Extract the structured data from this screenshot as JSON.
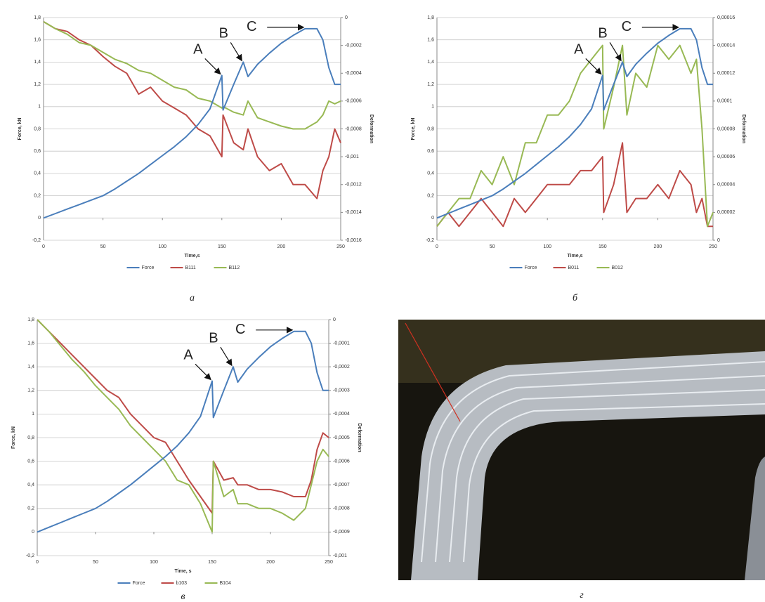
{
  "chart_data": [
    {
      "type": "line",
      "caption": "а",
      "xlabel": "Time,s",
      "ylabel": "Force, kN",
      "y2label": "Deformation",
      "xlim": [
        0,
        250
      ],
      "xticks": [
        0,
        50,
        100,
        150,
        200,
        250
      ],
      "ylim": [
        -0.2,
        1.8
      ],
      "yticks": [
        {
          "value": -0.2,
          "label": "-0,2"
        },
        0,
        {
          "value": 0.2,
          "label": "0,2"
        },
        {
          "value": 0.4,
          "label": "0,4"
        },
        {
          "value": 0.6,
          "label": "0,6"
        },
        {
          "value": 0.8,
          "label": "0,8"
        },
        1,
        {
          "value": 1.2,
          "label": "1,2"
        },
        {
          "value": 1.4,
          "label": "1,4"
        },
        {
          "value": 1.6,
          "label": "1,6"
        },
        {
          "value": 1.8,
          "label": "1,8"
        }
      ],
      "y2lim": [
        -0.0016,
        0
      ],
      "y2ticks": [
        {
          "value": -0.0016,
          "label": "-0,0016"
        },
        {
          "value": -0.0014,
          "label": "-0,0014"
        },
        {
          "value": -0.0012,
          "label": "-0,0012"
        },
        {
          "value": -0.001,
          "label": "-0,001"
        },
        {
          "value": -0.0008,
          "label": "-0,0008"
        },
        {
          "value": -0.0006,
          "label": "-0,0006"
        },
        {
          "value": -0.0004,
          "label": "-0,0004"
        },
        {
          "value": -0.0002,
          "label": "-0,0002"
        },
        0
      ],
      "grid": true,
      "x": [
        0,
        10,
        20,
        30,
        40,
        50,
        60,
        70,
        80,
        90,
        100,
        110,
        120,
        130,
        140,
        150,
        151,
        160,
        168,
        172,
        180,
        190,
        200,
        210,
        220,
        230,
        235,
        240,
        245,
        250
      ],
      "series": [
        {
          "name": "Force",
          "color": "#4a7ebb",
          "values": [
            0,
            0.04,
            0.08,
            0.12,
            0.16,
            0.2,
            0.26,
            0.33,
            0.4,
            0.48,
            0.56,
            0.64,
            0.73,
            0.84,
            0.98,
            1.28,
            0.97,
            1.2,
            1.4,
            1.27,
            1.38,
            1.48,
            1.57,
            1.64,
            1.7,
            1.7,
            1.6,
            1.35,
            1.2,
            1.2
          ]
        },
        {
          "name": "B111",
          "color": "#be4b48",
          "axis": "y2",
          "values": [
            -3e-05,
            -8e-05,
            -0.0001,
            -0.00016,
            -0.0002,
            -0.00028,
            -0.00035,
            -0.0004,
            -0.00055,
            -0.0005,
            -0.0006,
            -0.00065,
            -0.0007,
            -0.0008,
            -0.00085,
            -0.001,
            -0.0007,
            -0.0009,
            -0.00095,
            -0.0008,
            -0.001,
            -0.0011,
            -0.00105,
            -0.0012,
            -0.0012,
            -0.0013,
            -0.0011,
            -0.001,
            -0.0008,
            -0.0009
          ]
        },
        {
          "name": "B112",
          "color": "#98b954",
          "axis": "y2",
          "values": [
            -3e-05,
            -8e-05,
            -0.00012,
            -0.00018,
            -0.0002,
            -0.00025,
            -0.0003,
            -0.00033,
            -0.00038,
            -0.0004,
            -0.00045,
            -0.0005,
            -0.00052,
            -0.00058,
            -0.0006,
            -0.00065,
            -0.00064,
            -0.00068,
            -0.0007,
            -0.0006,
            -0.00072,
            -0.00075,
            -0.00078,
            -0.0008,
            -0.0008,
            -0.00075,
            -0.0007,
            -0.0006,
            -0.00062,
            -0.0006
          ]
        }
      ],
      "annotations": [
        {
          "text": "A",
          "x": 150,
          "y": 1.28
        },
        {
          "text": "B",
          "x": 168,
          "y": 1.4
        },
        {
          "text": "C",
          "x": 220,
          "y": 1.7
        }
      ]
    },
    {
      "type": "line",
      "caption": "б",
      "xlabel": "Time,s",
      "ylabel": "Force, kN",
      "y2label": "Deformation",
      "xlim": [
        0,
        250
      ],
      "xticks": [
        0,
        50,
        100,
        150,
        200,
        250
      ],
      "ylim": [
        -0.2,
        1.8
      ],
      "yticks": [
        {
          "value": -0.2,
          "label": "-0,2"
        },
        0,
        {
          "value": 0.2,
          "label": "0,2"
        },
        {
          "value": 0.4,
          "label": "0,4"
        },
        {
          "value": 0.6,
          "label": "0,6"
        },
        {
          "value": 0.8,
          "label": "0,8"
        },
        1,
        {
          "value": 1.2,
          "label": "1,2"
        },
        {
          "value": 1.4,
          "label": "1,4"
        },
        {
          "value": 1.6,
          "label": "1,6"
        },
        {
          "value": 1.8,
          "label": "1,8"
        }
      ],
      "y2lim": [
        0,
        0.00016
      ],
      "y2ticks": [
        0,
        {
          "value": 2e-05,
          "label": "0,00002"
        },
        {
          "value": 4e-05,
          "label": "0,00004"
        },
        {
          "value": 6e-05,
          "label": "0,00006"
        },
        {
          "value": 8e-05,
          "label": "0,00008"
        },
        {
          "value": 0.0001,
          "label": "0,0001"
        },
        {
          "value": 0.00012,
          "label": "0,00012"
        },
        {
          "value": 0.00014,
          "label": "0,00014"
        },
        {
          "value": 0.00016,
          "label": "0,00016"
        }
      ],
      "grid": true,
      "x": [
        0,
        10,
        20,
        30,
        40,
        50,
        60,
        70,
        80,
        90,
        100,
        110,
        120,
        130,
        140,
        150,
        151,
        160,
        168,
        172,
        180,
        190,
        200,
        210,
        220,
        230,
        235,
        240,
        245,
        250
      ],
      "series": [
        {
          "name": "Force",
          "color": "#4a7ebb",
          "values": [
            0,
            0.04,
            0.08,
            0.12,
            0.16,
            0.2,
            0.26,
            0.33,
            0.4,
            0.48,
            0.56,
            0.64,
            0.73,
            0.84,
            0.98,
            1.28,
            0.97,
            1.2,
            1.4,
            1.27,
            1.38,
            1.48,
            1.57,
            1.64,
            1.7,
            1.7,
            1.6,
            1.35,
            1.2,
            1.2
          ]
        },
        {
          "name": "B011",
          "color": "#be4b48",
          "axis": "y2",
          "values": [
            1e-05,
            2e-05,
            1e-05,
            2e-05,
            3e-05,
            2e-05,
            1e-05,
            3e-05,
            2e-05,
            3e-05,
            4e-05,
            4e-05,
            4e-05,
            5e-05,
            5e-05,
            6e-05,
            2e-05,
            4e-05,
            7e-05,
            2e-05,
            3e-05,
            3e-05,
            4e-05,
            3e-05,
            5e-05,
            4e-05,
            2e-05,
            3e-05,
            1e-05,
            1e-05
          ]
        },
        {
          "name": "B012",
          "color": "#98b954",
          "axis": "y2",
          "values": [
            1e-05,
            2e-05,
            3e-05,
            3e-05,
            5e-05,
            4e-05,
            6e-05,
            4e-05,
            7e-05,
            7e-05,
            9e-05,
            9e-05,
            0.0001,
            0.00012,
            0.00013,
            0.00014,
            8e-05,
            0.00011,
            0.00014,
            9e-05,
            0.00012,
            0.00011,
            0.00014,
            0.00013,
            0.00014,
            0.00012,
            0.00013,
            8e-05,
            1e-05,
            2e-05
          ]
        }
      ],
      "annotations": [
        {
          "text": "A",
          "x": 150,
          "y": 1.28
        },
        {
          "text": "B",
          "x": 168,
          "y": 1.4
        },
        {
          "text": "C",
          "x": 220,
          "y": 1.7
        }
      ]
    },
    {
      "type": "line",
      "caption": "в",
      "xlabel": "Time, s",
      "ylabel": "Force, kN",
      "y2label": "Deformation",
      "xlim": [
        0,
        250
      ],
      "xticks": [
        0,
        50,
        100,
        150,
        200,
        250
      ],
      "ylim": [
        -0.2,
        1.8
      ],
      "yticks": [
        {
          "value": -0.2,
          "label": "-0,2"
        },
        0,
        {
          "value": 0.2,
          "label": "0,2"
        },
        {
          "value": 0.4,
          "label": "0,4"
        },
        {
          "value": 0.6,
          "label": "0,6"
        },
        {
          "value": 0.8,
          "label": "0,8"
        },
        1,
        {
          "value": 1.2,
          "label": "1,2"
        },
        {
          "value": 1.4,
          "label": "1,4"
        },
        {
          "value": 1.6,
          "label": "1,6"
        },
        {
          "value": 1.8,
          "label": "1,8"
        }
      ],
      "y2lim": [
        -0.001,
        0
      ],
      "y2ticks": [
        {
          "value": -0.001,
          "label": "-0,001"
        },
        {
          "value": -0.0009,
          "label": "-0,0009"
        },
        {
          "value": -0.0008,
          "label": "-0,0008"
        },
        {
          "value": -0.0007,
          "label": "-0,0007"
        },
        {
          "value": -0.0006,
          "label": "-0,0006"
        },
        {
          "value": -0.0005,
          "label": "-0,0005"
        },
        {
          "value": -0.0004,
          "label": "-0,0004"
        },
        {
          "value": -0.0003,
          "label": "-0,0003"
        },
        {
          "value": -0.0002,
          "label": "-0,0002"
        },
        {
          "value": -0.0001,
          "label": "-0,0001"
        },
        0
      ],
      "grid": true,
      "x": [
        0,
        10,
        20,
        30,
        40,
        50,
        60,
        70,
        80,
        90,
        100,
        110,
        120,
        130,
        140,
        150,
        151,
        160,
        168,
        172,
        180,
        190,
        200,
        210,
        220,
        230,
        235,
        240,
        245,
        250
      ],
      "series": [
        {
          "name": "Force",
          "color": "#4a7ebb",
          "values": [
            0,
            0.04,
            0.08,
            0.12,
            0.16,
            0.2,
            0.26,
            0.33,
            0.4,
            0.48,
            0.56,
            0.64,
            0.73,
            0.84,
            0.98,
            1.28,
            0.97,
            1.2,
            1.4,
            1.27,
            1.38,
            1.48,
            1.57,
            1.64,
            1.7,
            1.7,
            1.6,
            1.35,
            1.2,
            1.2
          ]
        },
        {
          "name": "b103",
          "color": "#be4b48",
          "axis": "y2",
          "values": [
            0,
            -5e-05,
            -0.0001,
            -0.00015,
            -0.0002,
            -0.00025,
            -0.0003,
            -0.00033,
            -0.0004,
            -0.00045,
            -0.0005,
            -0.00052,
            -0.0006,
            -0.00068,
            -0.00075,
            -0.00082,
            -0.0006,
            -0.00068,
            -0.00067,
            -0.0007,
            -0.0007,
            -0.00072,
            -0.00072,
            -0.00073,
            -0.00075,
            -0.00075,
            -0.00068,
            -0.00055,
            -0.00048,
            -0.0005
          ]
        },
        {
          "name": "B104",
          "color": "#98b954",
          "axis": "y2",
          "values": [
            0,
            -5e-05,
            -0.00011,
            -0.00017,
            -0.00022,
            -0.00028,
            -0.00033,
            -0.00038,
            -0.00045,
            -0.0005,
            -0.00055,
            -0.0006,
            -0.00068,
            -0.0007,
            -0.00078,
            -0.0009,
            -0.0006,
            -0.00075,
            -0.00072,
            -0.00078,
            -0.00078,
            -0.0008,
            -0.0008,
            -0.00082,
            -0.00085,
            -0.0008,
            -0.0007,
            -0.0006,
            -0.00055,
            -0.00058
          ]
        }
      ],
      "annotations": [
        {
          "text": "A",
          "x": 150,
          "y": 1.28
        },
        {
          "text": "B",
          "x": 168,
          "y": 1.4
        },
        {
          "text": "C",
          "x": 220,
          "y": 1.7
        }
      ]
    }
  ],
  "photo": {
    "caption": "г"
  }
}
